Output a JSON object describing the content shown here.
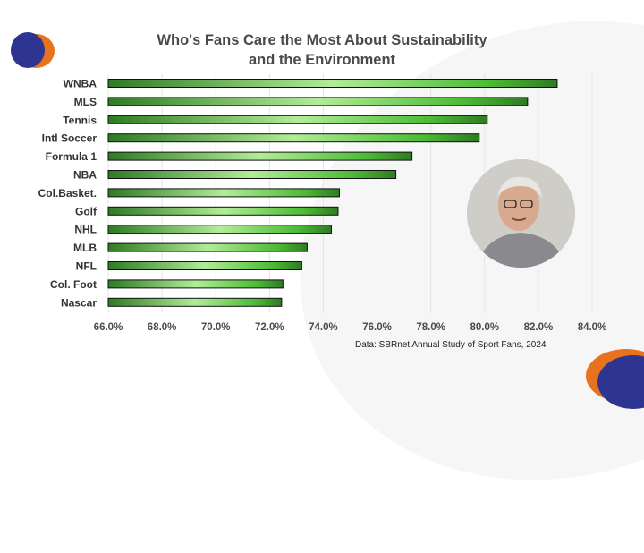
{
  "chart_data": {
    "type": "bar",
    "orientation": "horizontal",
    "title": "Who's Fans Care the Most About Sustainability and the Environment",
    "title_lines": [
      "Who's Fans Care the Most About Sustainability",
      "and the Environment"
    ],
    "categories": [
      "WNBA",
      "MLS",
      "Tennis",
      "Intl Soccer",
      "Formula 1",
      "NBA",
      "Col.Basket.",
      "Golf",
      "NHL",
      "MLB",
      "NFL",
      "Col. Foot",
      "Nascar"
    ],
    "values": [
      82.7,
      81.6,
      80.1,
      79.8,
      77.3,
      76.7,
      74.6,
      74.55,
      74.3,
      73.4,
      73.2,
      72.5,
      72.45
    ],
    "xlim": [
      66,
      84
    ],
    "xticks": [
      "66.0%",
      "68.0%",
      "70.0%",
      "72.0%",
      "74.0%",
      "76.0%",
      "78.0%",
      "80.0%",
      "82.0%",
      "84.0%"
    ],
    "grid": true,
    "bar_color": "#3fae2a",
    "source": "Data: SBRnet Annual Study of Sport Fans, 2024"
  },
  "brand_colors": {
    "blue": "#2e3590",
    "orange": "#e8731e"
  }
}
